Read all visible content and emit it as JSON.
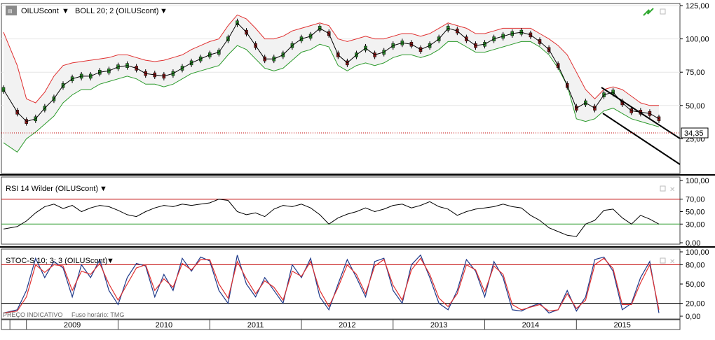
{
  "panels": {
    "price": {
      "symbol_label": "OILUScont",
      "indicator_label": "BOLL 20; 2 (OILUScont)",
      "last_price_label": "34,35",
      "y_ticks": [
        "125,00",
        "100,00",
        "75,00",
        "50,00",
        "25,00"
      ]
    },
    "rsi": {
      "label": "RSI 14 Wilder (OILUScont)",
      "y_ticks": [
        "100,00",
        "70,00",
        "50,00",
        "30,00",
        "0,00"
      ]
    },
    "stoch": {
      "label": "STOC-S 10; 3; 3 (OILUScont)",
      "y_ticks": [
        "100,00",
        "80,00",
        "50,00",
        "20,00",
        "0,00"
      ]
    }
  },
  "footer": {
    "indicative": "PREÇO INDICATIVO",
    "timezone": "Fuso horário: TMG"
  },
  "x_axis": {
    "years": [
      "2009",
      "2010",
      "2011",
      "2012",
      "2013",
      "2014",
      "2015"
    ]
  },
  "colors": {
    "upper_band": "#e03030",
    "lower_band": "#2a9a2a",
    "price": "#000000",
    "rsi": "#000000",
    "stoch_k": "#1f3a8a",
    "stoch_d": "#e03030",
    "level_high": "#c00000",
    "level_low": "#2a9a2a",
    "band_fill": "#f2f2f2"
  },
  "chart_data": [
    {
      "type": "line",
      "name": "price",
      "ylim": [
        0,
        125
      ],
      "x": [
        2008.75,
        2008.9,
        2009.0,
        2009.1,
        2009.2,
        2009.3,
        2009.4,
        2009.5,
        2009.6,
        2009.7,
        2009.8,
        2009.9,
        2010.0,
        2010.1,
        2010.2,
        2010.3,
        2010.4,
        2010.5,
        2010.6,
        2010.7,
        2010.8,
        2010.9,
        2011.0,
        2011.1,
        2011.2,
        2011.3,
        2011.4,
        2011.5,
        2011.6,
        2011.7,
        2011.8,
        2011.9,
        2012.0,
        2012.1,
        2012.2,
        2012.3,
        2012.4,
        2012.5,
        2012.6,
        2012.7,
        2012.8,
        2012.9,
        2013.0,
        2013.1,
        2013.2,
        2013.3,
        2013.4,
        2013.5,
        2013.6,
        2013.7,
        2013.8,
        2013.9,
        2014.0,
        2014.1,
        2014.2,
        2014.3,
        2014.4,
        2014.5,
        2014.6,
        2014.7,
        2014.8,
        2014.9,
        2015.0,
        2015.1,
        2015.2,
        2015.3,
        2015.4,
        2015.5,
        2015.6,
        2015.7,
        2015.8,
        2015.9
      ],
      "series": [
        {
          "values": [
            62,
            45,
            38,
            40,
            48,
            55,
            65,
            70,
            72,
            72,
            75,
            76,
            79,
            80,
            78,
            74,
            73,
            72,
            74,
            78,
            82,
            85,
            88,
            90,
            100,
            112,
            105,
            95,
            85,
            85,
            88,
            95,
            100,
            102,
            108,
            104,
            88,
            82,
            88,
            93,
            88,
            90,
            95,
            97,
            96,
            92,
            95,
            100,
            108,
            106,
            100,
            95,
            96,
            100,
            102,
            104,
            105,
            103,
            98,
            92,
            80,
            65,
            48,
            52,
            48,
            58,
            60,
            52,
            46,
            45,
            44,
            40
          ]
        },
        {
          "values": [
            105,
            80,
            55,
            52,
            60,
            72,
            80,
            82,
            83,
            84,
            85,
            86,
            88,
            88,
            86,
            84,
            83,
            84,
            86,
            88,
            92,
            95,
            98,
            100,
            110,
            118,
            115,
            108,
            100,
            100,
            102,
            106,
            108,
            110,
            112,
            110,
            100,
            98,
            100,
            102,
            100,
            100,
            102,
            104,
            104,
            102,
            104,
            108,
            112,
            110,
            108,
            104,
            104,
            106,
            108,
            108,
            108,
            108,
            104,
            100,
            95,
            88,
            75,
            62,
            55,
            62,
            64,
            62,
            57,
            52,
            50,
            50
          ]
        },
        {
          "values": [
            22,
            15,
            25,
            30,
            36,
            42,
            52,
            58,
            62,
            62,
            66,
            68,
            70,
            72,
            70,
            66,
            66,
            64,
            66,
            70,
            74,
            76,
            78,
            80,
            88,
            95,
            92,
            85,
            78,
            76,
            78,
            84,
            90,
            92,
            96,
            94,
            80,
            76,
            80,
            82,
            80,
            82,
            86,
            88,
            88,
            86,
            88,
            92,
            98,
            98,
            94,
            90,
            90,
            92,
            94,
            96,
            98,
            98,
            94,
            88,
            78,
            65,
            40,
            38,
            40,
            46,
            48,
            44,
            40,
            38,
            36,
            34
          ]
        }
      ]
    },
    {
      "type": "line",
      "name": "rsi",
      "ylim": [
        0,
        100
      ],
      "x": [
        2008.75,
        2008.9,
        2009.0,
        2009.1,
        2009.2,
        2009.3,
        2009.4,
        2009.5,
        2009.6,
        2009.7,
        2009.8,
        2009.9,
        2010.0,
        2010.1,
        2010.2,
        2010.3,
        2010.4,
        2010.5,
        2010.6,
        2010.7,
        2010.8,
        2010.9,
        2011.0,
        2011.1,
        2011.2,
        2011.3,
        2011.4,
        2011.5,
        2011.6,
        2011.7,
        2011.8,
        2011.9,
        2012.0,
        2012.1,
        2012.2,
        2012.3,
        2012.4,
        2012.5,
        2012.6,
        2012.7,
        2012.8,
        2012.9,
        2013.0,
        2013.1,
        2013.2,
        2013.3,
        2013.4,
        2013.5,
        2013.6,
        2013.7,
        2013.8,
        2013.9,
        2014.0,
        2014.1,
        2014.2,
        2014.3,
        2014.4,
        2014.5,
        2014.6,
        2014.7,
        2014.8,
        2014.9,
        2015.0,
        2015.1,
        2015.2,
        2015.3,
        2015.4,
        2015.5,
        2015.6,
        2015.7,
        2015.8,
        2015.9
      ],
      "series": [
        {
          "values": [
            22,
            26,
            35,
            48,
            58,
            62,
            55,
            60,
            50,
            56,
            60,
            58,
            52,
            45,
            42,
            50,
            56,
            60,
            58,
            62,
            60,
            62,
            64,
            70,
            68,
            50,
            45,
            48,
            42,
            54,
            60,
            58,
            62,
            56,
            45,
            30,
            40,
            46,
            50,
            56,
            50,
            54,
            60,
            62,
            56,
            60,
            66,
            58,
            54,
            44,
            50,
            54,
            56,
            58,
            62,
            58,
            56,
            44,
            36,
            24,
            18,
            12,
            10,
            30,
            36,
            52,
            54,
            40,
            30,
            44,
            38,
            30
          ]
        }
      ]
    },
    {
      "type": "line",
      "name": "stoch",
      "ylim": [
        0,
        100
      ],
      "x": [
        2008.75,
        2008.9,
        2009.0,
        2009.1,
        2009.2,
        2009.3,
        2009.4,
        2009.5,
        2009.6,
        2009.7,
        2009.8,
        2009.9,
        2010.0,
        2010.1,
        2010.2,
        2010.3,
        2010.4,
        2010.5,
        2010.6,
        2010.7,
        2010.8,
        2010.9,
        2011.0,
        2011.1,
        2011.2,
        2011.3,
        2011.4,
        2011.5,
        2011.6,
        2011.7,
        2011.8,
        2011.9,
        2012.0,
        2012.1,
        2012.2,
        2012.3,
        2012.4,
        2012.5,
        2012.6,
        2012.7,
        2012.8,
        2012.9,
        2013.0,
        2013.1,
        2013.2,
        2013.3,
        2013.4,
        2013.5,
        2013.6,
        2013.7,
        2013.8,
        2013.9,
        2014.0,
        2014.1,
        2014.2,
        2014.3,
        2014.4,
        2014.5,
        2014.6,
        2014.7,
        2014.8,
        2014.9,
        2015.0,
        2015.1,
        2015.2,
        2015.3,
        2015.4,
        2015.5,
        2015.6,
        2015.7,
        2015.8,
        2015.9
      ],
      "series": [
        {
          "values": [
            5,
            10,
            40,
            90,
            60,
            85,
            75,
            30,
            80,
            60,
            88,
            40,
            18,
            60,
            82,
            78,
            30,
            65,
            40,
            90,
            70,
            92,
            86,
            40,
            20,
            95,
            50,
            30,
            60,
            40,
            20,
            80,
            60,
            90,
            30,
            10,
            50,
            88,
            60,
            30,
            85,
            90,
            40,
            20,
            80,
            95,
            60,
            20,
            10,
            40,
            88,
            70,
            30,
            85,
            60,
            10,
            8,
            15,
            20,
            5,
            10,
            40,
            8,
            30,
            88,
            92,
            70,
            10,
            20,
            60,
            85,
            5
          ]
        },
        {
          "values": [
            5,
            8,
            30,
            80,
            68,
            80,
            78,
            40,
            70,
            65,
            82,
            50,
            25,
            50,
            75,
            80,
            40,
            58,
            45,
            82,
            72,
            88,
            88,
            50,
            28,
            85,
            58,
            35,
            55,
            45,
            25,
            70,
            62,
            85,
            40,
            15,
            45,
            80,
            65,
            35,
            78,
            88,
            48,
            25,
            72,
            90,
            65,
            28,
            15,
            35,
            80,
            72,
            38,
            78,
            65,
            18,
            10,
            14,
            18,
            8,
            10,
            35,
            12,
            25,
            80,
            90,
            74,
            18,
            18,
            52,
            80,
            10
          ]
        }
      ]
    }
  ]
}
